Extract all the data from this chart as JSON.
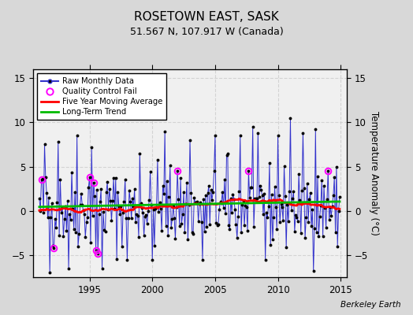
{
  "title": "ROSETOWN EAST, SASK",
  "subtitle": "51.567 N, 107.917 W (Canada)",
  "ylabel": "Temperature Anomaly (°C)",
  "watermark": "Berkeley Earth",
  "ylim": [
    -7.5,
    16
  ],
  "yticks": [
    -5,
    0,
    5,
    10,
    15
  ],
  "xlim": [
    1990.5,
    2015.5
  ],
  "xticks": [
    1995,
    2000,
    2005,
    2010,
    2015
  ],
  "bg_color": "#d8d8d8",
  "plot_bg_color": "#f0f0f0",
  "line_color": "#3333cc",
  "dot_color": "#000000",
  "ma_color": "#ff0000",
  "trend_color": "#00bb00",
  "qc_color": "#ff00ff",
  "grid_color": "#cccccc",
  "seed": 42,
  "n_months": 288,
  "start_year": 1991.0
}
